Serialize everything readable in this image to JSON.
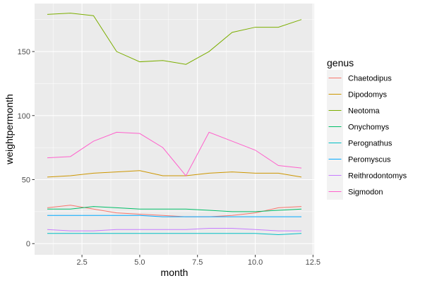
{
  "chart_data": {
    "type": "line",
    "title": "",
    "xlabel": "month",
    "ylabel": "weightpermonth",
    "xlim": [
      0.45,
      12.55
    ],
    "ylim": [
      -8.7,
      187.5
    ],
    "x_ticks": [
      2.5,
      5.0,
      7.5,
      10.0,
      12.5
    ],
    "x_tick_labels": [
      "2.5",
      "5.0",
      "7.5",
      "10.0",
      "12.5"
    ],
    "y_ticks": [
      0,
      50,
      100,
      150
    ],
    "y_tick_labels": [
      "0",
      "50",
      "100",
      "150"
    ],
    "grid": true,
    "legend": {
      "title": "genus",
      "position": "right"
    },
    "x": [
      1,
      2,
      3,
      4,
      5,
      6,
      7,
      8,
      9,
      10,
      11,
      12
    ],
    "series": [
      {
        "name": "Chaetodipus",
        "color": "#F8766D",
        "values": [
          28,
          30,
          27,
          24,
          23,
          22,
          21,
          21,
          22,
          24,
          28,
          29
        ]
      },
      {
        "name": "Dipodomys",
        "color": "#CD9600",
        "values": [
          52,
          53,
          55,
          56,
          57,
          53,
          53,
          55,
          56,
          55,
          55,
          52
        ]
      },
      {
        "name": "Neotoma",
        "color": "#7CAE00",
        "values": [
          179,
          180,
          178,
          150,
          142,
          143,
          140,
          150,
          165,
          169,
          169,
          175
        ]
      },
      {
        "name": "Onychomys",
        "color": "#00BE67",
        "values": [
          27,
          27,
          29,
          28,
          27,
          27,
          27,
          26,
          25,
          25,
          26,
          27
        ]
      },
      {
        "name": "Perognathus",
        "color": "#00BFC4",
        "values": [
          8,
          8,
          8,
          8,
          8,
          8,
          8,
          8,
          8,
          8,
          7,
          8
        ]
      },
      {
        "name": "Peromyscus",
        "color": "#00A9FF",
        "values": [
          22,
          22,
          22,
          22,
          22,
          21,
          21,
          21,
          21,
          21,
          21,
          21
        ]
      },
      {
        "name": "Reithrodontomys",
        "color": "#C77CFF",
        "values": [
          11,
          10,
          10,
          11,
          11,
          11,
          11,
          12,
          12,
          11,
          10,
          10
        ]
      },
      {
        "name": "Sigmodon",
        "color": "#FF61CC",
        "values": [
          67,
          68,
          80,
          87,
          86,
          75,
          53,
          87,
          80,
          73,
          61,
          59
        ]
      }
    ]
  }
}
